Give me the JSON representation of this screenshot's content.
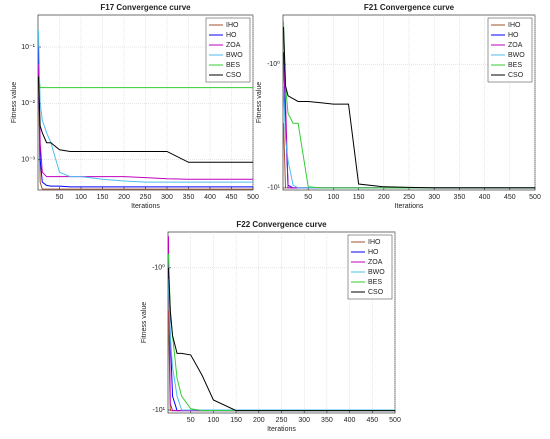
{
  "chart_data": [
    {
      "type": "line",
      "title": "F17 Convergence curve",
      "x_label": "Iterations",
      "y_label": "Fitness value",
      "log": true,
      "grid": true,
      "legend": "northeast",
      "x": [
        1,
        5,
        10,
        20,
        30,
        50,
        75,
        100,
        150,
        200,
        250,
        300,
        350,
        400,
        450,
        500
      ],
      "xlim": [
        0,
        500
      ],
      "xticks": [
        50,
        100,
        150,
        200,
        250,
        300,
        350,
        400,
        450,
        500
      ],
      "ylim": [
        0.00029,
        0.37
      ],
      "yticks": [
        {
          "value": 0.001,
          "label": "10⁻³"
        },
        {
          "value": 0.01,
          "label": "10⁻²"
        },
        {
          "value": 0.1,
          "label": "10⁻¹"
        }
      ],
      "series": [
        {
          "name": "IHO",
          "color": "#a0522d",
          "values": [
            0.05,
            0.0004,
            0.0003,
            0.0003,
            0.0003,
            0.0003,
            0.0003,
            0.0003,
            0.0003,
            0.0003,
            0.0003,
            0.0003,
            0.0003,
            0.0003,
            0.0003,
            0.0003
          ]
        },
        {
          "name": "HO",
          "color": "#0000ff",
          "values": [
            0.1,
            0.001,
            0.0004,
            0.00035,
            0.00034,
            0.00034,
            0.00033,
            0.00033,
            0.00033,
            0.00033,
            0.00033,
            0.00033,
            0.00033,
            0.00033,
            0.00033,
            0.00033
          ]
        },
        {
          "name": "ZOA",
          "color": "#bf00bf",
          "values": [
            0.05,
            0.002,
            0.0006,
            0.0005,
            0.0005,
            0.0005,
            0.0005,
            0.0005,
            0.0005,
            0.0005,
            0.00048,
            0.00046,
            0.00045,
            0.00045,
            0.00045,
            0.00045
          ]
        },
        {
          "name": "BWO",
          "color": "#4dbeee",
          "values": [
            0.2,
            0.01,
            0.005,
            0.003,
            0.002,
            0.0006,
            0.0005,
            0.0005,
            0.00045,
            0.00042,
            0.0004,
            0.0004,
            0.0004,
            0.0004,
            0.0004,
            0.0004
          ]
        },
        {
          "name": "BES",
          "color": "#33cc33",
          "values": [
            0.03,
            0.019,
            0.019,
            0.019,
            0.019,
            0.019,
            0.019,
            0.019,
            0.019,
            0.019,
            0.019,
            0.019,
            0.019,
            0.019,
            0.019,
            0.019
          ]
        },
        {
          "name": "CSO",
          "color": "#000000",
          "values": [
            0.03,
            0.004,
            0.003,
            0.002,
            0.002,
            0.0015,
            0.0014,
            0.0014,
            0.0014,
            0.0014,
            0.0014,
            0.0014,
            0.0009,
            0.0009,
            0.0009,
            0.0009
          ]
        }
      ]
    },
    {
      "type": "line",
      "title": "F21 Convergence curve",
      "x_label": "Iterations",
      "y_label": "Fitness value",
      "log": true,
      "grid": true,
      "legend": "northeast",
      "x": [
        1,
        5,
        10,
        20,
        30,
        50,
        75,
        100,
        130,
        150,
        200,
        250,
        300,
        350,
        400,
        450,
        500
      ],
      "xlim": [
        0,
        500
      ],
      "xticks": [
        50,
        100,
        150,
        200,
        250,
        300,
        350,
        400,
        450,
        500
      ],
      "ylim": [
        -10.4,
        -0.4
      ],
      "yticks": [
        {
          "value": -10,
          "label": "-10¹"
        },
        {
          "value": -1,
          "label": "-10⁰"
        }
      ],
      "series": [
        {
          "name": "IHO",
          "color": "#a0522d",
          "values": [
            -3,
            -10,
            -10,
            -10,
            -10,
            -10,
            -10,
            -10,
            -10,
            -10,
            -10,
            -10,
            -10,
            -10,
            -10,
            -10,
            -10
          ]
        },
        {
          "name": "HO",
          "color": "#0000ff",
          "values": [
            -0.8,
            -3,
            -9.5,
            -10,
            -10,
            -10,
            -10,
            -10,
            -10,
            -10,
            -10,
            -10,
            -10,
            -10,
            -10,
            -10,
            -10
          ]
        },
        {
          "name": "ZOA",
          "color": "#bf00bf",
          "values": [
            -1,
            -2,
            -10,
            -10,
            -10,
            -10,
            -10,
            -10,
            -10,
            -10,
            -10,
            -10,
            -10,
            -10,
            -10,
            -10,
            -10
          ]
        },
        {
          "name": "BWO",
          "color": "#4dbeee",
          "values": [
            -1.5,
            -4,
            -6,
            -9.5,
            -10,
            -10,
            -10,
            -10,
            -10,
            -10,
            -10,
            -10,
            -10,
            -10,
            -10,
            -10,
            -10
          ]
        },
        {
          "name": "BES",
          "color": "#33cc33",
          "values": [
            -0.45,
            -1.5,
            -2.5,
            -3,
            -3,
            -9.8,
            -10,
            -10,
            -10,
            -10,
            -10,
            -10,
            -10,
            -10,
            -10,
            -10,
            -10
          ]
        },
        {
          "name": "CSO",
          "color": "#000000",
          "values": [
            -0.5,
            -1.5,
            -1.8,
            -1.9,
            -2,
            -2,
            -2.05,
            -2.1,
            -2.1,
            -9.3,
            -9.8,
            -9.9,
            -10,
            -10,
            -10,
            -10,
            -10
          ]
        }
      ]
    },
    {
      "type": "line",
      "title": "F22 Convergence curve",
      "x_label": "Iterations",
      "y_label": "Fitness value",
      "log": true,
      "grid": true,
      "legend": "northeast",
      "x": [
        1,
        5,
        10,
        20,
        30,
        50,
        75,
        100,
        150,
        200,
        250,
        300,
        350,
        400,
        450,
        500
      ],
      "xlim": [
        0,
        500
      ],
      "xticks": [
        50,
        100,
        150,
        200,
        250,
        300,
        350,
        400,
        450,
        500
      ],
      "ylim": [
        -10.5,
        -0.56
      ],
      "yticks": [
        {
          "value": -10,
          "label": "-10¹"
        },
        {
          "value": -1,
          "label": "-10⁰"
        }
      ],
      "series": [
        {
          "name": "IHO",
          "color": "#a0522d",
          "values": [
            -2,
            -10.1,
            -10.1,
            -10.1,
            -10.1,
            -10.1,
            -10.1,
            -10.1,
            -10.1,
            -10.1,
            -10.1,
            -10.1,
            -10.1,
            -10.1,
            -10.1,
            -10.1
          ]
        },
        {
          "name": "HO",
          "color": "#0000ff",
          "values": [
            -0.9,
            -3,
            -8,
            -10.1,
            -10.1,
            -10.1,
            -10.1,
            -10.1,
            -10.1,
            -10.1,
            -10.1,
            -10.1,
            -10.1,
            -10.1,
            -10.1,
            -10.1
          ]
        },
        {
          "name": "ZOA",
          "color": "#bf00bf",
          "values": [
            -0.6,
            -9,
            -10.1,
            -10.1,
            -10.1,
            -10.1,
            -10.1,
            -10.1,
            -10.1,
            -10.1,
            -10.1,
            -10.1,
            -10.1,
            -10.1,
            -10.1,
            -10.1
          ]
        },
        {
          "name": "BWO",
          "color": "#4dbeee",
          "values": [
            -1.2,
            -3,
            -5,
            -8,
            -10,
            -10,
            -10,
            -10,
            -10,
            -10,
            -10,
            -10,
            -10,
            -10,
            -10,
            -10
          ]
        },
        {
          "name": "BES",
          "color": "#33cc33",
          "values": [
            -0.8,
            -2,
            -3,
            -6,
            -8,
            -9.8,
            -10.1,
            -10.1,
            -10.1,
            -10.1,
            -10.1,
            -10.1,
            -10.1,
            -10.1,
            -10.1,
            -10.1
          ]
        },
        {
          "name": "CSO",
          "color": "#000000",
          "values": [
            -1,
            -2,
            -3,
            -4,
            -4,
            -4.1,
            -5.7,
            -8.5,
            -10.1,
            -10.1,
            -10.1,
            -10.1,
            -10.1,
            -10.1,
            -10.1,
            -10.1
          ]
        }
      ]
    }
  ]
}
